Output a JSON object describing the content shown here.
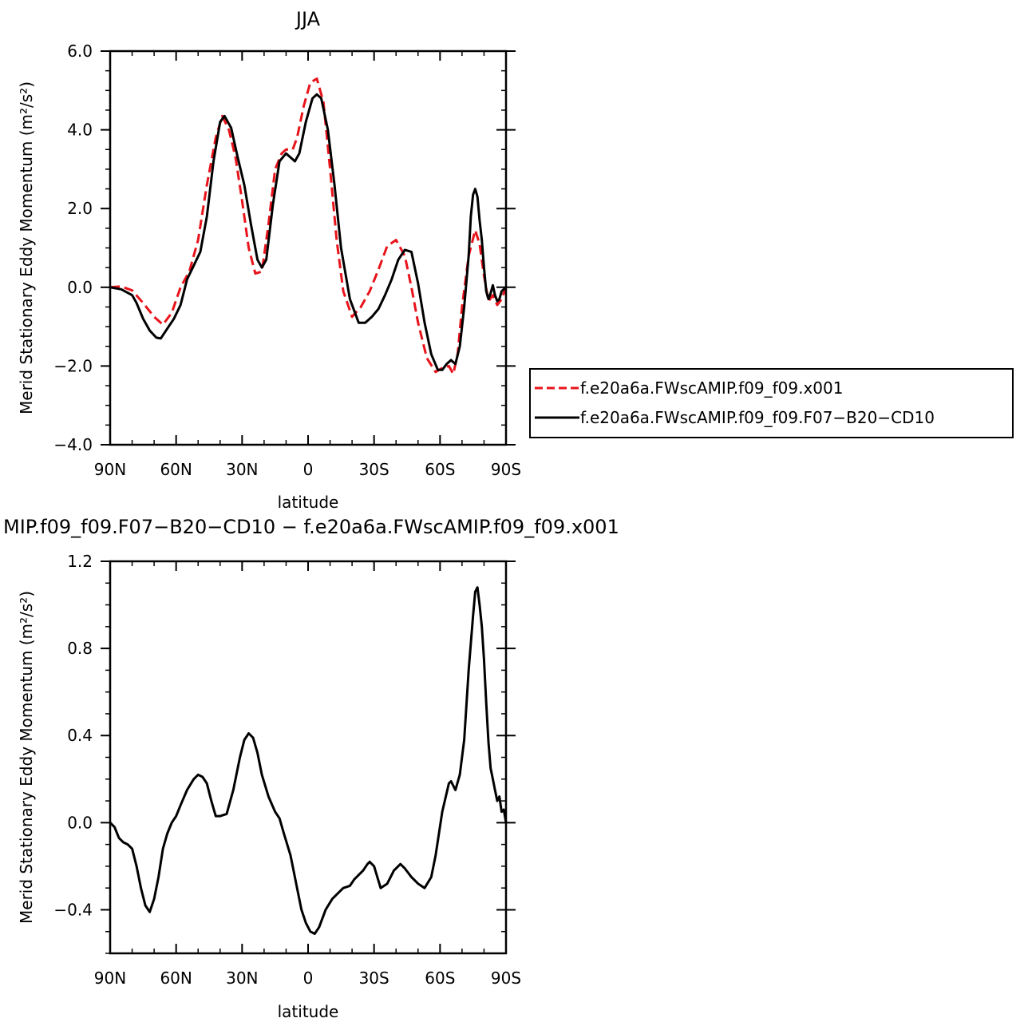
{
  "chart_data": [
    {
      "type": "line",
      "title": "JJA",
      "xlabel": "latitude",
      "ylabel": "Merid Stationary Eddy Momentum (m²/s²)",
      "x_tick_labels": [
        "90N",
        "60N",
        "30N",
        "0",
        "30S",
        "60S",
        "90S"
      ],
      "x_ticks": [
        90,
        60,
        30,
        0,
        -30,
        -60,
        -90
      ],
      "xlim": [
        90,
        -90
      ],
      "y_tick_labels": [
        "6.0",
        "4.0",
        "2.0",
        "0.0",
        "−2.0",
        "−4.0"
      ],
      "y_ticks": [
        6,
        4,
        2,
        0,
        -2,
        -4
      ],
      "ylim": [
        -4,
        6
      ],
      "legend_position": "right",
      "series": [
        {
          "name": "f.e20a6a.FWscAMIP.f09_f09.x001",
          "color": "#e8141b",
          "dash": "dashed",
          "x": [
            90,
            85,
            80,
            75,
            70,
            66,
            62,
            58,
            54,
            50,
            46,
            42,
            39,
            36,
            33,
            30,
            27,
            24,
            21,
            18,
            15,
            12,
            10,
            7,
            5,
            2,
            -1,
            -4,
            -7,
            -10,
            -13,
            -16,
            -20,
            -24,
            -28,
            -32,
            -36,
            -40,
            -44,
            -47,
            -50,
            -54,
            -58,
            -61,
            -64,
            -66,
            -68,
            -70,
            -73,
            -76,
            -78,
            -80,
            -82,
            -84,
            -86,
            -88,
            -90
          ],
          "y": [
            0.0,
            0.02,
            -0.08,
            -0.4,
            -0.75,
            -0.95,
            -0.65,
            0.0,
            0.4,
            1.2,
            2.6,
            3.8,
            4.35,
            4.0,
            3.3,
            2.2,
            1.0,
            0.35,
            0.4,
            1.6,
            3.0,
            3.4,
            3.5,
            3.5,
            3.8,
            4.6,
            5.2,
            5.3,
            4.7,
            3.0,
            1.2,
            -0.1,
            -0.75,
            -0.5,
            -0.1,
            0.45,
            1.05,
            1.2,
            0.8,
            0.0,
            -0.9,
            -1.8,
            -2.15,
            -2.05,
            -2.0,
            -2.2,
            -1.7,
            -0.5,
            0.8,
            1.45,
            1.1,
            0.3,
            -0.35,
            -0.2,
            -0.45,
            -0.3,
            0.0
          ]
        },
        {
          "name": "f.e20a6a.FWscAMIP.f09_f09.F07−B20−CD10",
          "color": "#000000",
          "dash": "solid",
          "x": [
            90,
            85,
            80,
            78,
            75,
            72,
            69,
            67,
            64,
            61,
            58,
            55,
            52,
            49,
            46,
            43,
            40,
            38,
            35,
            32,
            29,
            26,
            23,
            21,
            19,
            16,
            13,
            10,
            8,
            6,
            4,
            1,
            -2,
            -4,
            -6,
            -9,
            -12,
            -15,
            -19,
            -23,
            -26,
            -29,
            -32,
            -35,
            -38,
            -41,
            -44,
            -47,
            -50,
            -53,
            -56,
            -59,
            -61,
            -63,
            -65,
            -67,
            -69,
            -71,
            -73,
            -74,
            -75,
            -76,
            -77,
            -78,
            -79,
            -80,
            -81,
            -82,
            -83,
            -84,
            -85,
            -86,
            -87,
            -88,
            -89,
            -90
          ],
          "y": [
            0.0,
            -0.05,
            -0.2,
            -0.4,
            -0.8,
            -1.1,
            -1.28,
            -1.3,
            -1.05,
            -0.8,
            -0.45,
            0.2,
            0.55,
            0.9,
            1.8,
            3.2,
            4.2,
            4.35,
            4.05,
            3.3,
            2.6,
            1.6,
            0.7,
            0.5,
            0.7,
            2.1,
            3.2,
            3.4,
            3.3,
            3.2,
            3.4,
            4.2,
            4.8,
            4.9,
            4.8,
            4.0,
            2.6,
            1.0,
            -0.3,
            -0.9,
            -0.9,
            -0.75,
            -0.55,
            -0.2,
            0.2,
            0.7,
            0.95,
            0.9,
            0.1,
            -0.9,
            -1.7,
            -2.1,
            -2.1,
            -1.95,
            -1.85,
            -1.95,
            -1.5,
            -0.5,
            0.8,
            1.8,
            2.35,
            2.5,
            2.3,
            1.7,
            1.2,
            0.5,
            -0.1,
            -0.3,
            -0.15,
            0.05,
            -0.2,
            -0.35,
            -0.3,
            -0.1,
            -0.05,
            0.0
          ]
        }
      ]
    },
    {
      "type": "line",
      "title": "MIP.f09_f09.F07−B20−CD10 − f.e20a6a.FWscAMIP.f09_f09.x001",
      "xlabel": "latitude",
      "ylabel": "Merid Stationary Eddy Momentum (m²/s²)",
      "x_tick_labels": [
        "90N",
        "60N",
        "30N",
        "0",
        "30S",
        "60S",
        "90S"
      ],
      "x_ticks": [
        90,
        60,
        30,
        0,
        -30,
        -60,
        -90
      ],
      "xlim": [
        90,
        -90
      ],
      "y_tick_labels": [
        "1.2",
        "0.8",
        "0.4",
        "0.0",
        "−0.4"
      ],
      "y_ticks": [
        1.2,
        0.8,
        0.4,
        0.0,
        -0.4
      ],
      "ylim": [
        -0.6,
        1.2
      ],
      "series": [
        {
          "color": "#000000",
          "dash": "solid",
          "x": [
            90,
            88,
            86,
            84,
            82,
            80,
            78,
            76,
            74,
            72,
            70,
            68,
            66,
            64,
            62,
            60,
            58,
            55,
            52,
            50,
            48,
            46,
            44,
            42,
            40,
            37,
            34,
            31,
            29,
            27,
            25,
            23,
            21,
            18,
            15,
            13,
            11,
            8,
            5,
            3,
            1,
            -1,
            -3,
            -5,
            -8,
            -11,
            -14,
            -16,
            -19,
            -21,
            -23,
            -25,
            -27,
            -28,
            -30,
            -33,
            -36,
            -39,
            -42,
            -44,
            -47,
            -50,
            -53,
            -56,
            -58,
            -61,
            -64,
            -65,
            -67,
            -69,
            -71,
            -73,
            -75,
            -76,
            -77,
            -78,
            -79,
            -80,
            -81,
            -82,
            -83,
            -84,
            -85,
            -86,
            -87,
            -88,
            -89,
            -90
          ],
          "y": [
            0.0,
            -0.02,
            -0.07,
            -0.09,
            -0.1,
            -0.12,
            -0.2,
            -0.3,
            -0.38,
            -0.41,
            -0.35,
            -0.25,
            -0.12,
            -0.05,
            0.0,
            0.03,
            0.08,
            0.15,
            0.2,
            0.22,
            0.21,
            0.18,
            0.1,
            0.03,
            0.03,
            0.04,
            0.15,
            0.3,
            0.38,
            0.41,
            0.39,
            0.32,
            0.22,
            0.12,
            0.05,
            0.02,
            -0.05,
            -0.15,
            -0.3,
            -0.4,
            -0.46,
            -0.5,
            -0.51,
            -0.48,
            -0.4,
            -0.35,
            -0.32,
            -0.3,
            -0.29,
            -0.26,
            -0.24,
            -0.22,
            -0.19,
            -0.18,
            -0.2,
            -0.3,
            -0.28,
            -0.22,
            -0.19,
            -0.21,
            -0.25,
            -0.28,
            -0.3,
            -0.25,
            -0.15,
            0.05,
            0.18,
            0.19,
            0.15,
            0.22,
            0.38,
            0.7,
            0.95,
            1.06,
            1.08,
            1.0,
            0.9,
            0.75,
            0.55,
            0.37,
            0.25,
            0.2,
            0.15,
            0.1,
            0.12,
            0.05,
            0.06,
            0.0
          ]
        }
      ]
    }
  ]
}
